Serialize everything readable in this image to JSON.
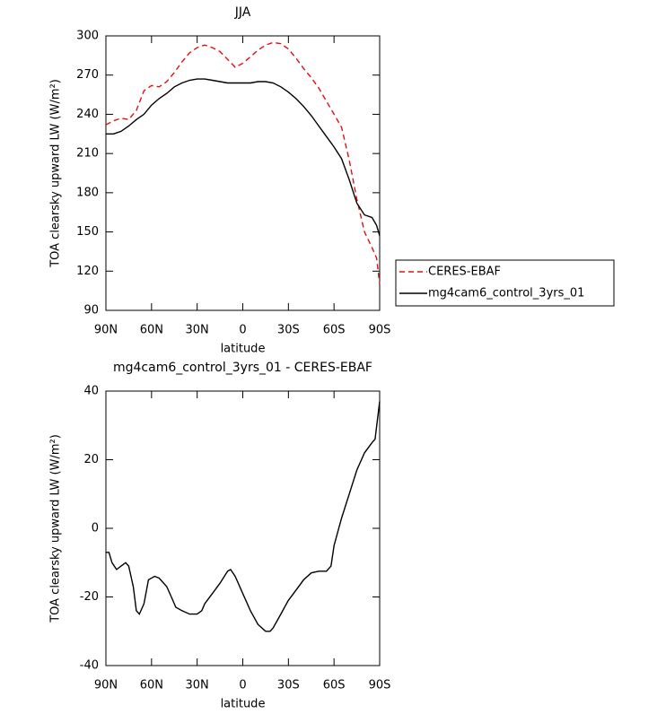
{
  "chart_data": [
    {
      "type": "line",
      "title": "JJA",
      "xlabel": "latitude",
      "ylabel": "TOA clearsky upward LW (W/m²)",
      "xlim": [
        90,
        -90
      ],
      "ylim": [
        90,
        300
      ],
      "xticks": [
        {
          "value": 90,
          "label": "90N"
        },
        {
          "value": 60,
          "label": "60N"
        },
        {
          "value": 30,
          "label": "30N"
        },
        0,
        {
          "value": -30,
          "label": "30S"
        },
        {
          "value": -60,
          "label": "60S"
        },
        {
          "value": -90,
          "label": "90S"
        }
      ],
      "yticks": [
        90,
        120,
        150,
        180,
        210,
        240,
        270,
        300
      ],
      "legend": "outside right",
      "x": [
        90,
        85,
        80,
        75,
        70,
        65,
        60,
        55,
        50,
        45,
        40,
        35,
        30,
        25,
        20,
        15,
        10,
        5,
        0,
        -5,
        -10,
        -15,
        -20,
        -25,
        -30,
        -35,
        -40,
        -45,
        -50,
        -55,
        -60,
        -65,
        -70,
        -75,
        -80,
        -85,
        -88,
        -90
      ],
      "series": [
        {
          "name": "CERES-EBAF",
          "color": "#e01010",
          "line_style": "dashed",
          "values": [
            232,
            235,
            237,
            236,
            243,
            258,
            262,
            261,
            265,
            272,
            280,
            287,
            291,
            293,
            291,
            288,
            282,
            276,
            279,
            284,
            289,
            293,
            295,
            294,
            290,
            283,
            275,
            268,
            260,
            250,
            240,
            230,
            205,
            175,
            150,
            138,
            130,
            110
          ]
        },
        {
          "name": "mg4cam6_control_3yrs_01",
          "color": "#000000",
          "line_style": "solid",
          "values": [
            225,
            225,
            227,
            231,
            236,
            240,
            247,
            252,
            256,
            261,
            264,
            266,
            267,
            267,
            266,
            265,
            264,
            264,
            264,
            264,
            265,
            265,
            264,
            261,
            257,
            252,
            246,
            239,
            231,
            223,
            215,
            206,
            190,
            172,
            163,
            161,
            155,
            147
          ]
        }
      ]
    },
    {
      "type": "line",
      "title": "mg4cam6_control_3yrs_01 - CERES-EBAF",
      "xlabel": "latitude",
      "ylabel": "TOA clearsky upward LW (W/m²)",
      "xlim": [
        90,
        -90
      ],
      "ylim": [
        -40,
        40
      ],
      "xticks": [
        {
          "value": 90,
          "label": "90N"
        },
        {
          "value": 60,
          "label": "60N"
        },
        {
          "value": 30,
          "label": "30N"
        },
        0,
        {
          "value": -30,
          "label": "30S"
        },
        {
          "value": -60,
          "label": "60S"
        },
        {
          "value": -90,
          "label": "90S"
        }
      ],
      "yticks": [
        -40,
        -20,
        0,
        20,
        40
      ],
      "x": [
        90,
        88,
        86,
        83,
        80,
        77,
        75,
        72,
        70,
        68,
        65,
        62,
        58,
        55,
        50,
        47,
        44,
        40,
        35,
        30,
        27,
        25,
        20,
        15,
        10,
        8,
        5,
        0,
        -5,
        -10,
        -15,
        -18,
        -20,
        -25,
        -30,
        -35,
        -40,
        -45,
        -50,
        -55,
        -58,
        -60,
        -65,
        -70,
        -75,
        -80,
        -85,
        -87,
        -90
      ],
      "series": [
        {
          "name": "mg4cam6_control_3yrs_01 - CERES-EBAF",
          "color": "#000000",
          "line_style": "solid",
          "values": [
            -7,
            -7,
            -10,
            -12,
            -11,
            -10,
            -11,
            -17,
            -24,
            -25,
            -22,
            -15,
            -14,
            -14.5,
            -17,
            -20,
            -23,
            -24,
            -25,
            -25,
            -24,
            -22,
            -19,
            -16,
            -12.5,
            -12,
            -14,
            -19,
            -24,
            -28,
            -30,
            -30,
            -29,
            -25,
            -21,
            -18,
            -15,
            -13,
            -12.5,
            -12.5,
            -11,
            -5,
            3,
            10,
            17,
            22,
            25,
            26,
            37
          ]
        }
      ]
    }
  ]
}
